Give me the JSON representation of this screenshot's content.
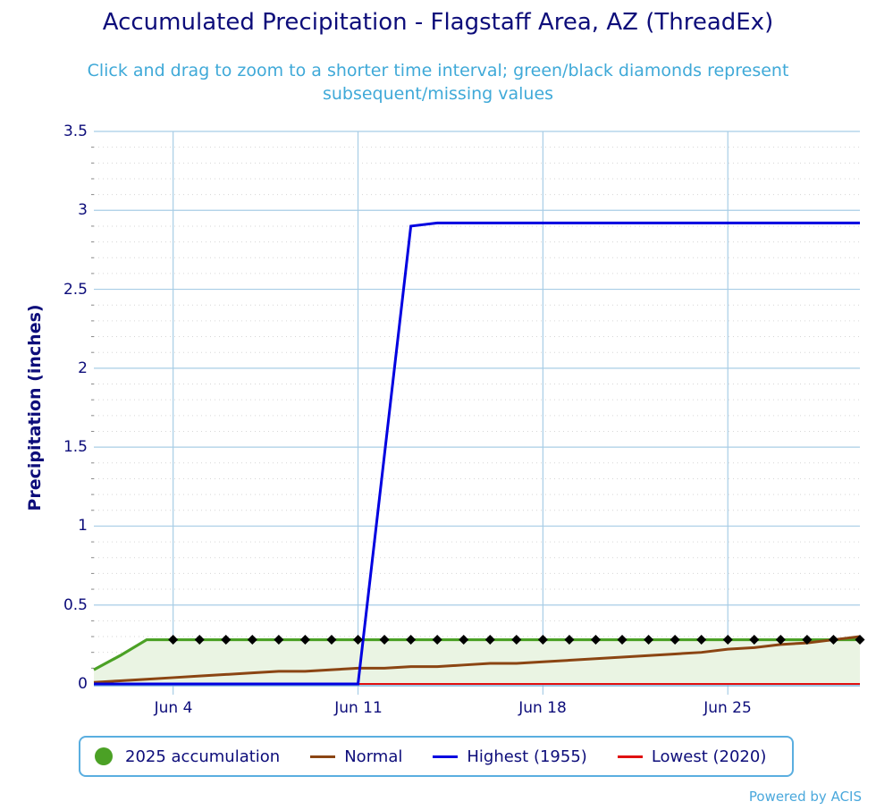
{
  "header": {
    "title": "Accumulated Precipitation - Flagstaff Area, AZ (ThreadEx)",
    "subtitle": "Click and drag to zoom to a shorter time interval; green/black diamonds represent subsequent/missing values"
  },
  "axes": {
    "ylabel": "Precipitation (inches)",
    "yticks": [
      "0",
      "0.5",
      "1",
      "1.5",
      "2",
      "2.5",
      "3",
      "3.5"
    ],
    "xticks": [
      "Jun 4",
      "Jun 11",
      "Jun 18",
      "Jun 25"
    ]
  },
  "legend": {
    "items": [
      {
        "label": "2025 accumulation",
        "color": "#4ba125",
        "marker": "circle"
      },
      {
        "label": "Normal",
        "color": "#8b4513",
        "marker": "line"
      },
      {
        "label": "Highest (1955)",
        "color": "#0000e0",
        "marker": "line"
      },
      {
        "label": "Lowest (2020)",
        "color": "#e01010",
        "marker": "line"
      }
    ]
  },
  "credits": "Powered by ACIS",
  "chart_data": {
    "type": "line",
    "title": "Accumulated Precipitation - Flagstaff Area, AZ (ThreadEx)",
    "subtitle": "Click and drag to zoom to a shorter time interval; green/black diamonds represent subsequent/missing values",
    "xlabel": "",
    "ylabel": "Precipitation (inches)",
    "ylim": [
      0,
      3.5
    ],
    "grid": true,
    "legend_position": "bottom",
    "x": [
      "Jun 1",
      "Jun 2",
      "Jun 3",
      "Jun 4",
      "Jun 5",
      "Jun 6",
      "Jun 7",
      "Jun 8",
      "Jun 9",
      "Jun 10",
      "Jun 11",
      "Jun 12",
      "Jun 13",
      "Jun 14",
      "Jun 15",
      "Jun 16",
      "Jun 17",
      "Jun 18",
      "Jun 19",
      "Jun 20",
      "Jun 21",
      "Jun 22",
      "Jun 23",
      "Jun 24",
      "Jun 25",
      "Jun 26",
      "Jun 27",
      "Jun 28",
      "Jun 29",
      "Jun 30"
    ],
    "series": [
      {
        "name": "2025 accumulation",
        "color": "#4ba125",
        "values": [
          0.09,
          0.18,
          0.28,
          0.28,
          0.28,
          0.28,
          0.28,
          0.28,
          0.28,
          0.28,
          0.28,
          0.28,
          0.28,
          0.28,
          0.28,
          0.28,
          0.28,
          0.28,
          0.28,
          0.28,
          0.28,
          0.28,
          0.28,
          0.28,
          0.28,
          0.28,
          0.28,
          0.28,
          0.28,
          0.28
        ],
        "missing_markers_from": "Jun 4"
      },
      {
        "name": "Normal",
        "color": "#8b4513",
        "values": [
          0.01,
          0.02,
          0.03,
          0.04,
          0.05,
          0.06,
          0.07,
          0.08,
          0.08,
          0.09,
          0.1,
          0.1,
          0.11,
          0.11,
          0.12,
          0.13,
          0.13,
          0.14,
          0.15,
          0.16,
          0.17,
          0.18,
          0.19,
          0.2,
          0.22,
          0.23,
          0.25,
          0.26,
          0.28,
          0.3
        ]
      },
      {
        "name": "Highest (1955)",
        "color": "#0000e0",
        "values": [
          0,
          0,
          0,
          0,
          0,
          0,
          0,
          0,
          0,
          0,
          0,
          1.45,
          2.9,
          2.92,
          2.92,
          2.92,
          2.92,
          2.92,
          2.92,
          2.92,
          2.92,
          2.92,
          2.92,
          2.92,
          2.92,
          2.92,
          2.92,
          2.92,
          2.92,
          2.92
        ]
      },
      {
        "name": "Lowest (2020)",
        "color": "#e01010",
        "values": [
          0,
          0,
          0,
          0,
          0,
          0,
          0,
          0,
          0,
          0,
          0,
          0,
          0,
          0,
          0,
          0,
          0,
          0,
          0,
          0,
          0,
          0,
          0,
          0,
          0,
          0,
          0,
          0,
          0,
          0
        ]
      }
    ]
  }
}
